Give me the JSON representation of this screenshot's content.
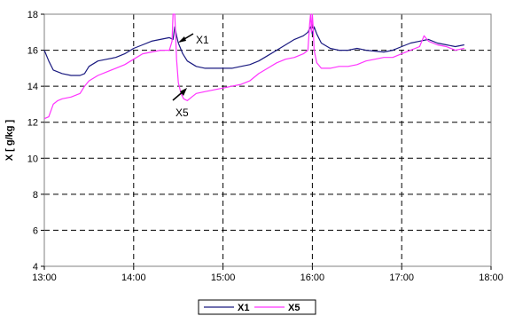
{
  "chart_data": {
    "type": "line",
    "ylabel": "X [ g/kg ]",
    "xlim": [
      13.0,
      18.0
    ],
    "ylim": [
      4,
      18
    ],
    "x_ticks": [
      13,
      14,
      15,
      16,
      17,
      18
    ],
    "x_tick_labels": [
      "13:00",
      "14:00",
      "15:00",
      "16:00",
      "17:00",
      "18:00"
    ],
    "y_ticks": [
      4,
      6,
      8,
      10,
      12,
      14,
      16,
      18
    ],
    "grid": true,
    "legend": "bottom-center",
    "colors": {
      "X1": "#1a1a80",
      "X5": "#ff33ff"
    },
    "series": [
      {
        "name": "X1",
        "x": [
          13.0,
          13.05,
          13.1,
          13.2,
          13.3,
          13.4,
          13.45,
          13.5,
          13.6,
          13.7,
          13.8,
          13.9,
          14.0,
          14.1,
          14.2,
          14.3,
          14.4,
          14.44,
          14.46,
          14.48,
          14.5,
          14.55,
          14.6,
          14.7,
          14.8,
          14.9,
          15.0,
          15.1,
          15.2,
          15.3,
          15.4,
          15.5,
          15.6,
          15.7,
          15.8,
          15.9,
          15.95,
          15.98,
          16.0,
          16.02,
          16.05,
          16.1,
          16.2,
          16.3,
          16.4,
          16.5,
          16.6,
          16.7,
          16.8,
          16.9,
          17.0,
          17.1,
          17.2,
          17.3,
          17.4,
          17.5,
          17.6,
          17.7
        ],
        "y": [
          16.0,
          15.4,
          14.9,
          14.7,
          14.6,
          14.6,
          14.7,
          15.1,
          15.4,
          15.5,
          15.6,
          15.8,
          16.1,
          16.3,
          16.5,
          16.6,
          16.7,
          16.6,
          17.3,
          16.8,
          16.4,
          15.8,
          15.4,
          15.1,
          15.0,
          15.0,
          15.0,
          15.0,
          15.1,
          15.2,
          15.4,
          15.7,
          16.0,
          16.3,
          16.6,
          16.8,
          17.0,
          17.3,
          16.9,
          17.3,
          16.9,
          16.4,
          16.1,
          16.0,
          16.0,
          16.1,
          16.0,
          15.95,
          15.9,
          16.0,
          16.2,
          16.4,
          16.5,
          16.6,
          16.4,
          16.3,
          16.2,
          16.3
        ]
      },
      {
        "name": "X5",
        "x": [
          13.0,
          13.05,
          13.1,
          13.15,
          13.2,
          13.3,
          13.4,
          13.45,
          13.5,
          13.6,
          13.7,
          13.8,
          13.9,
          14.0,
          14.1,
          14.2,
          14.3,
          14.4,
          14.43,
          14.44,
          14.46,
          14.48,
          14.5,
          14.53,
          14.56,
          14.6,
          14.65,
          14.7,
          14.8,
          14.9,
          15.0,
          15.1,
          15.2,
          15.3,
          15.4,
          15.5,
          15.6,
          15.7,
          15.8,
          15.9,
          15.95,
          15.97,
          15.98,
          15.99,
          16.0,
          16.01,
          16.02,
          16.05,
          16.1,
          16.2,
          16.3,
          16.4,
          16.5,
          16.6,
          16.7,
          16.8,
          16.9,
          17.0,
          17.1,
          17.2,
          17.25,
          17.3,
          17.4,
          17.5,
          17.6,
          17.7
        ],
        "y": [
          12.2,
          12.3,
          13.0,
          13.2,
          13.3,
          13.4,
          13.6,
          14.0,
          14.3,
          14.6,
          14.8,
          15.0,
          15.2,
          15.5,
          15.8,
          15.9,
          16.0,
          16.0,
          16.5,
          18.0,
          18.0,
          15.5,
          14.2,
          13.6,
          13.3,
          13.2,
          13.4,
          13.6,
          13.7,
          13.8,
          13.9,
          14.0,
          14.1,
          14.3,
          14.7,
          15.0,
          15.3,
          15.5,
          15.6,
          15.8,
          16.0,
          17.5,
          18.0,
          17.0,
          18.0,
          17.2,
          16.0,
          15.3,
          15.0,
          15.0,
          15.1,
          15.1,
          15.2,
          15.4,
          15.5,
          15.6,
          15.6,
          15.8,
          16.0,
          16.2,
          16.8,
          16.5,
          16.3,
          16.2,
          16.0,
          16.1
        ]
      }
    ],
    "annotations": [
      {
        "text": "X1",
        "series": "X1"
      },
      {
        "text": "X5",
        "series": "X5"
      }
    ]
  }
}
